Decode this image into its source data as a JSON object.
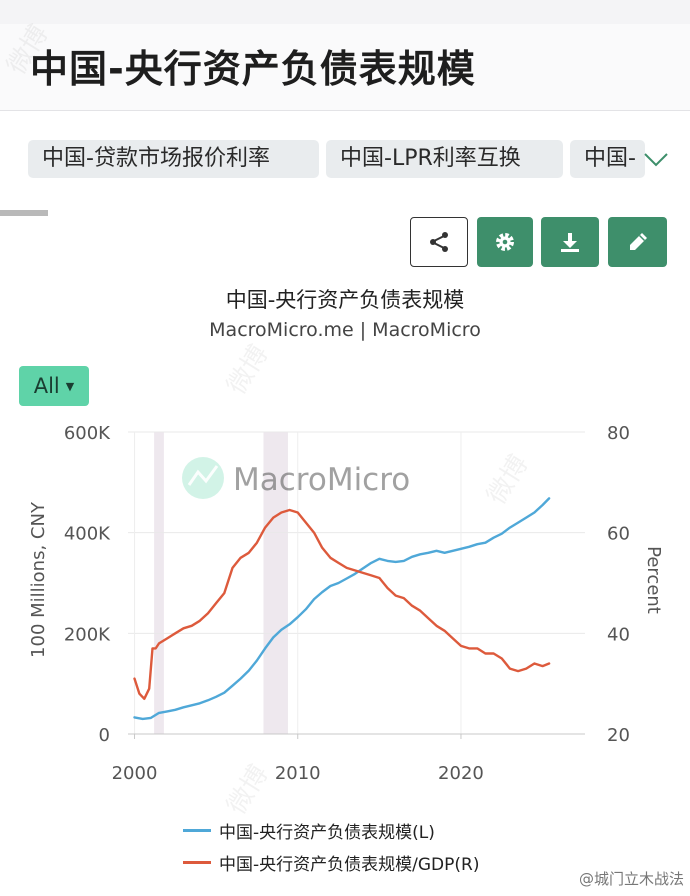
{
  "header": {
    "title": "中国-央行资产负债表规模"
  },
  "tags": [
    "中国-贷款市场报价利率",
    "中国-LPR利率互换",
    "中国-"
  ],
  "toolbar": {
    "icons": [
      "share-icon",
      "gear-icon",
      "download-icon",
      "pencil-icon"
    ],
    "outline_color": "#333333",
    "button_color": "#3e8f6b"
  },
  "range_selector": {
    "label": "All"
  },
  "chart_data": {
    "type": "line",
    "title": "中国-央行资产负债表规模",
    "subtitle": "MacroMicro.me | MacroMicro",
    "watermark": "MacroMicro",
    "ylabel_left": "100 Millions, CNY",
    "ylabel_right": "Percent",
    "xlim": [
      1999.6,
      2027.6
    ],
    "ylim_left": [
      0,
      600000
    ],
    "ylim_right": [
      20,
      80
    ],
    "x_ticks": [
      2000,
      2010,
      2020
    ],
    "x_tick_labels": [
      "2000",
      "2010",
      "2020"
    ],
    "y_left_ticks": [
      0,
      200000,
      400000,
      600000
    ],
    "y_left_tick_labels": [
      "0",
      "200K",
      "400K",
      "600K"
    ],
    "y_right_ticks": [
      20,
      40,
      60,
      80
    ],
    "y_right_tick_labels": [
      "20",
      "40",
      "60",
      "80"
    ],
    "recession_bands": [
      [
        2001.2,
        2001.8
      ],
      [
        2007.9,
        2009.4
      ]
    ],
    "grid": true,
    "legend_position": "bottom",
    "series": [
      {
        "name": "中国-央行资产负债表规模(L)",
        "axis": "left",
        "color": "#4fa8d8",
        "x": [
          2000.0,
          2000.5,
          2001.0,
          2001.5,
          2002.0,
          2002.5,
          2003.0,
          2003.5,
          2004.0,
          2004.5,
          2005.0,
          2005.5,
          2006.0,
          2006.5,
          2007.0,
          2007.5,
          2008.0,
          2008.5,
          2009.0,
          2009.5,
          2010.0,
          2010.5,
          2011.0,
          2011.5,
          2012.0,
          2012.5,
          2013.0,
          2013.5,
          2014.0,
          2014.5,
          2015.0,
          2015.5,
          2016.0,
          2016.5,
          2017.0,
          2017.5,
          2018.0,
          2018.5,
          2019.0,
          2019.5,
          2020.0,
          2020.5,
          2021.0,
          2021.5,
          2022.0,
          2022.5,
          2023.0,
          2023.5,
          2024.0,
          2024.5,
          2025.0,
          2025.4
        ],
        "values": [
          33000,
          30000,
          32000,
          42000,
          45000,
          48000,
          53000,
          57000,
          61000,
          67000,
          74000,
          82000,
          96000,
          110000,
          126000,
          146000,
          170000,
          192000,
          207000,
          218000,
          232000,
          248000,
          268000,
          282000,
          294000,
          300000,
          309000,
          318000,
          329000,
          340000,
          348000,
          344000,
          342000,
          344000,
          352000,
          357000,
          360000,
          364000,
          360000,
          364000,
          368000,
          372000,
          377000,
          380000,
          390000,
          398000,
          410000,
          420000,
          430000,
          440000,
          455000,
          468000
        ]
      },
      {
        "name": "中国-央行资产负债表规模/GDP(R)",
        "axis": "right",
        "color": "#dd5a3c",
        "x": [
          2000.0,
          2000.3,
          2000.6,
          2000.9,
          2001.1,
          2001.3,
          2001.5,
          2002.0,
          2002.5,
          2003.0,
          2003.5,
          2004.0,
          2004.5,
          2005.0,
          2005.5,
          2006.0,
          2006.5,
          2007.0,
          2007.5,
          2008.0,
          2008.5,
          2009.0,
          2009.5,
          2010.0,
          2010.5,
          2011.0,
          2011.5,
          2012.0,
          2012.5,
          2013.0,
          2013.5,
          2014.0,
          2014.5,
          2015.0,
          2015.5,
          2016.0,
          2016.5,
          2017.0,
          2017.5,
          2018.0,
          2018.5,
          2019.0,
          2019.5,
          2020.0,
          2020.5,
          2021.0,
          2021.5,
          2022.0,
          2022.5,
          2023.0,
          2023.5,
          2024.0,
          2024.5,
          2025.0,
          2025.4
        ],
        "values": [
          31,
          28,
          27,
          29,
          37,
          37,
          38,
          39,
          40,
          41,
          41.5,
          42.5,
          44,
          46,
          48,
          53,
          55,
          56,
          58,
          61,
          63,
          64,
          64.5,
          64,
          62,
          60,
          57,
          55,
          54,
          53,
          52.5,
          52,
          51.5,
          51,
          49,
          47.5,
          47,
          45.5,
          44.5,
          43,
          41.5,
          40.5,
          39,
          37.5,
          37,
          37,
          36,
          36,
          35,
          33,
          32.5,
          33,
          34,
          33.5,
          34
        ]
      }
    ]
  },
  "legend": {
    "entries": [
      "中国-央行资产负债表规模(L)",
      "中国-央行资产负债表规模/GDP(R)"
    ]
  },
  "footer": {
    "mark": "@城门立木战法"
  }
}
